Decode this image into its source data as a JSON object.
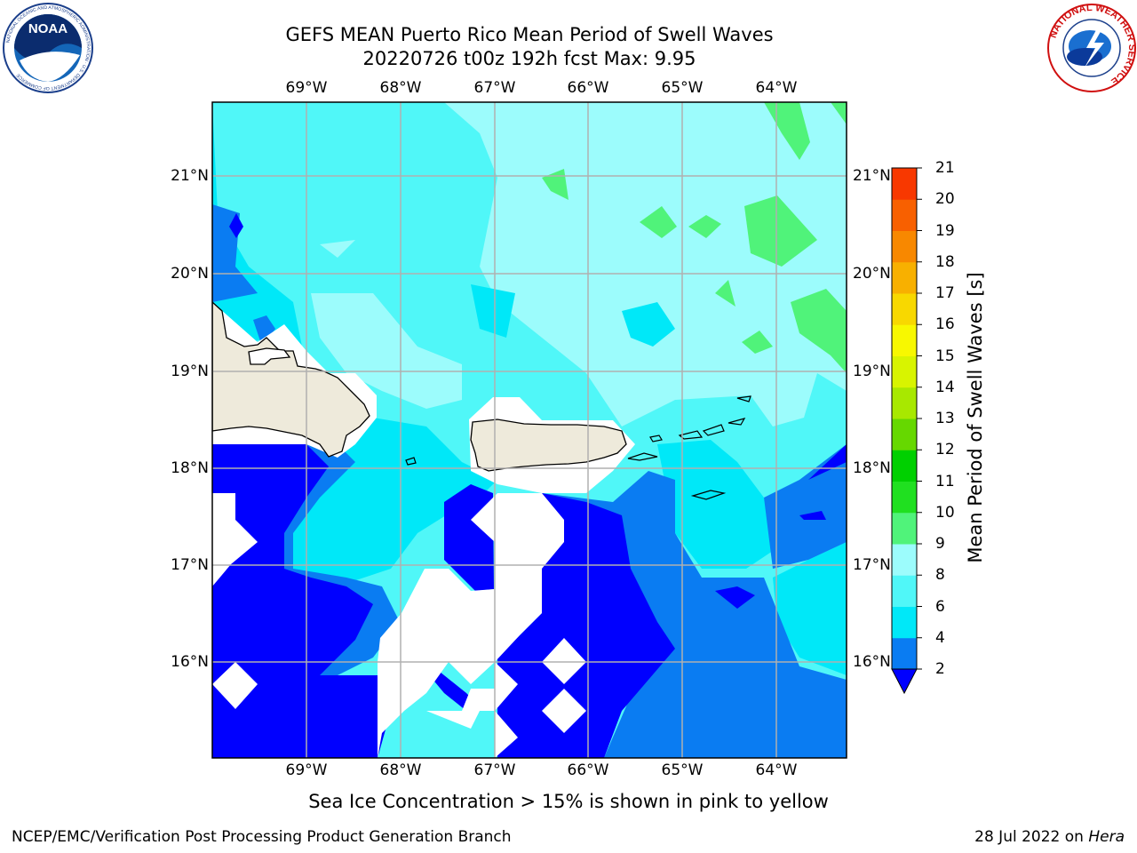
{
  "title_line1": "GEFS MEAN Puerto Rico Mean Period of Swell Waves",
  "title_line2": "20220726 t00z 192h fcst   Max: 9.95",
  "lon_labels": [
    "69°W",
    "68°W",
    "67°W",
    "66°W",
    "65°W",
    "64°W"
  ],
  "lat_labels": [
    "21°N",
    "20°N",
    "19°N",
    "18°N",
    "17°N",
    "16°N"
  ],
  "colorbar": {
    "label": "Mean Period of Swell Waves [s]",
    "ticks": [
      "2",
      "4",
      "6",
      "8",
      "9",
      "10",
      "11",
      "12",
      "13",
      "14",
      "15",
      "16",
      "17",
      "18",
      "19",
      "20",
      "21"
    ],
    "colors": [
      "#0000ff",
      "#0a7cf2",
      "#00e8f8",
      "#50f7f8",
      "#9cfcfc",
      "#50f37a",
      "#20e020",
      "#00d000",
      "#66d800",
      "#a8e800",
      "#d8f400",
      "#f8f800",
      "#f8d800",
      "#f8b000",
      "#f88800",
      "#f86000",
      "#f83800",
      "#f80000"
    ]
  },
  "footer_note": "Sea Ice Concentration > 15% is shown in pink to yellow",
  "footer_left": "NCEP/EMC/Verification Post Processing Product Generation Branch",
  "footer_date": "28 Jul 2022 on",
  "footer_host": "Hera",
  "logos": {
    "left": "NOAA",
    "left_ring": "NATIONAL OCEANIC AND ATMOSPHERIC ADMINISTRATION · U.S. DEPARTMENT OF COMMERCE",
    "right_ring": "NATIONAL WEATHER SERVICE"
  },
  "colors": {
    "land": "#eeeadb",
    "grid": "#b0b0b0"
  }
}
